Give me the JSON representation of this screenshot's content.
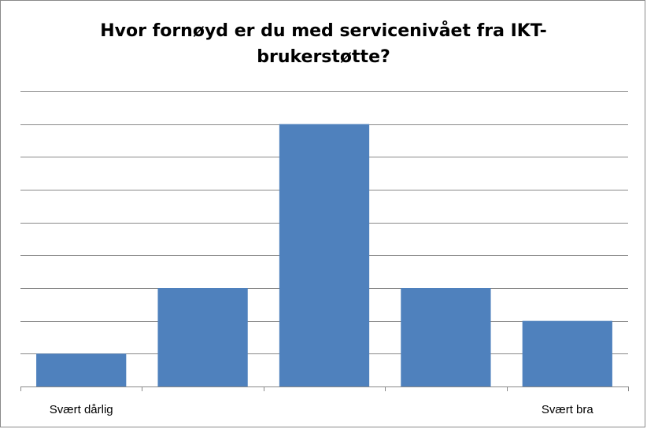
{
  "chart_data": {
    "type": "bar",
    "title": "Hvor fornøyd er du med servicenivået fra IKT-brukerstøtte?",
    "categories": [
      "Svært dårlig",
      "",
      "",
      "",
      "Svært bra"
    ],
    "values": [
      1,
      3,
      8,
      3,
      2
    ],
    "ylim": [
      0,
      9
    ],
    "grid": true,
    "legend": "none",
    "bar_color": "#4F81BD",
    "xlabel": "",
    "ylabel": ""
  }
}
